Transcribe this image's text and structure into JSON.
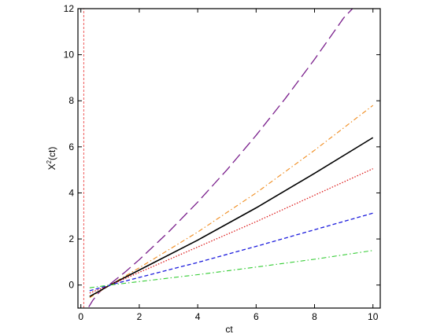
{
  "chart_data": {
    "type": "line",
    "title": "",
    "xlabel": "ct",
    "ylabel_base": "X",
    "ylabel_sup": "2",
    "ylabel_rest": "(ct)",
    "xlim": [
      -0.1,
      10.25
    ],
    "ylim": [
      -1.0,
      12.0
    ],
    "xticks": [
      0,
      2,
      4,
      6,
      8,
      10
    ],
    "yticks": [
      0,
      2,
      4,
      6,
      8,
      10,
      12
    ],
    "grid": false,
    "series": [
      {
        "color": "#7a1f8c",
        "dash": "14,6",
        "width": 1.3,
        "x": [
          0.27,
          0.4,
          0.6,
          0.8,
          1.0,
          1.5,
          2,
          3,
          4,
          5,
          6,
          7,
          8,
          9,
          9.3
        ],
        "y": [
          -0.95,
          -0.68,
          -0.35,
          -0.12,
          0.04,
          0.55,
          1.1,
          2.3,
          3.6,
          5.0,
          6.5,
          8.1,
          9.8,
          11.6,
          12.0
        ]
      },
      {
        "color": "#f08c1e",
        "dash": "6,3,1.5,3",
        "width": 1.1,
        "x": [
          0.3,
          1,
          2,
          4,
          6,
          8,
          10
        ],
        "y": [
          -0.55,
          0.0,
          0.75,
          2.3,
          4.0,
          5.85,
          7.8
        ]
      },
      {
        "color": "#000000",
        "dash": "",
        "width": 1.6,
        "x": [
          0.3,
          1,
          2,
          4,
          6,
          8,
          10
        ],
        "y": [
          -0.5,
          0.0,
          0.65,
          1.95,
          3.35,
          4.85,
          6.4
        ]
      },
      {
        "color": "#dd1c1c",
        "dash": "1.5,2",
        "width": 1.3,
        "x": [
          0.3,
          1,
          2,
          4,
          6,
          8,
          10
        ],
        "y": [
          -0.35,
          0.0,
          0.55,
          1.65,
          2.75,
          3.9,
          5.05
        ]
      },
      {
        "color": "#1c1cdd",
        "dash": "5,3",
        "width": 1.3,
        "x": [
          0.3,
          1,
          2,
          4,
          6,
          8,
          10
        ],
        "y": [
          -0.25,
          0.0,
          0.33,
          0.98,
          1.68,
          2.4,
          3.12
        ]
      },
      {
        "color": "#33cc33",
        "dash": "6,3,1.5,3",
        "width": 1.1,
        "x": [
          0.3,
          1,
          2,
          4,
          6,
          8,
          10
        ],
        "y": [
          -0.12,
          0.0,
          0.15,
          0.45,
          0.78,
          1.12,
          1.5
        ]
      },
      {
        "color": "#ef5a5a",
        "dash": "3,2",
        "width": 1.0,
        "x": [
          0.1,
          0.1
        ],
        "y": [
          -1.0,
          12.0
        ]
      }
    ]
  }
}
